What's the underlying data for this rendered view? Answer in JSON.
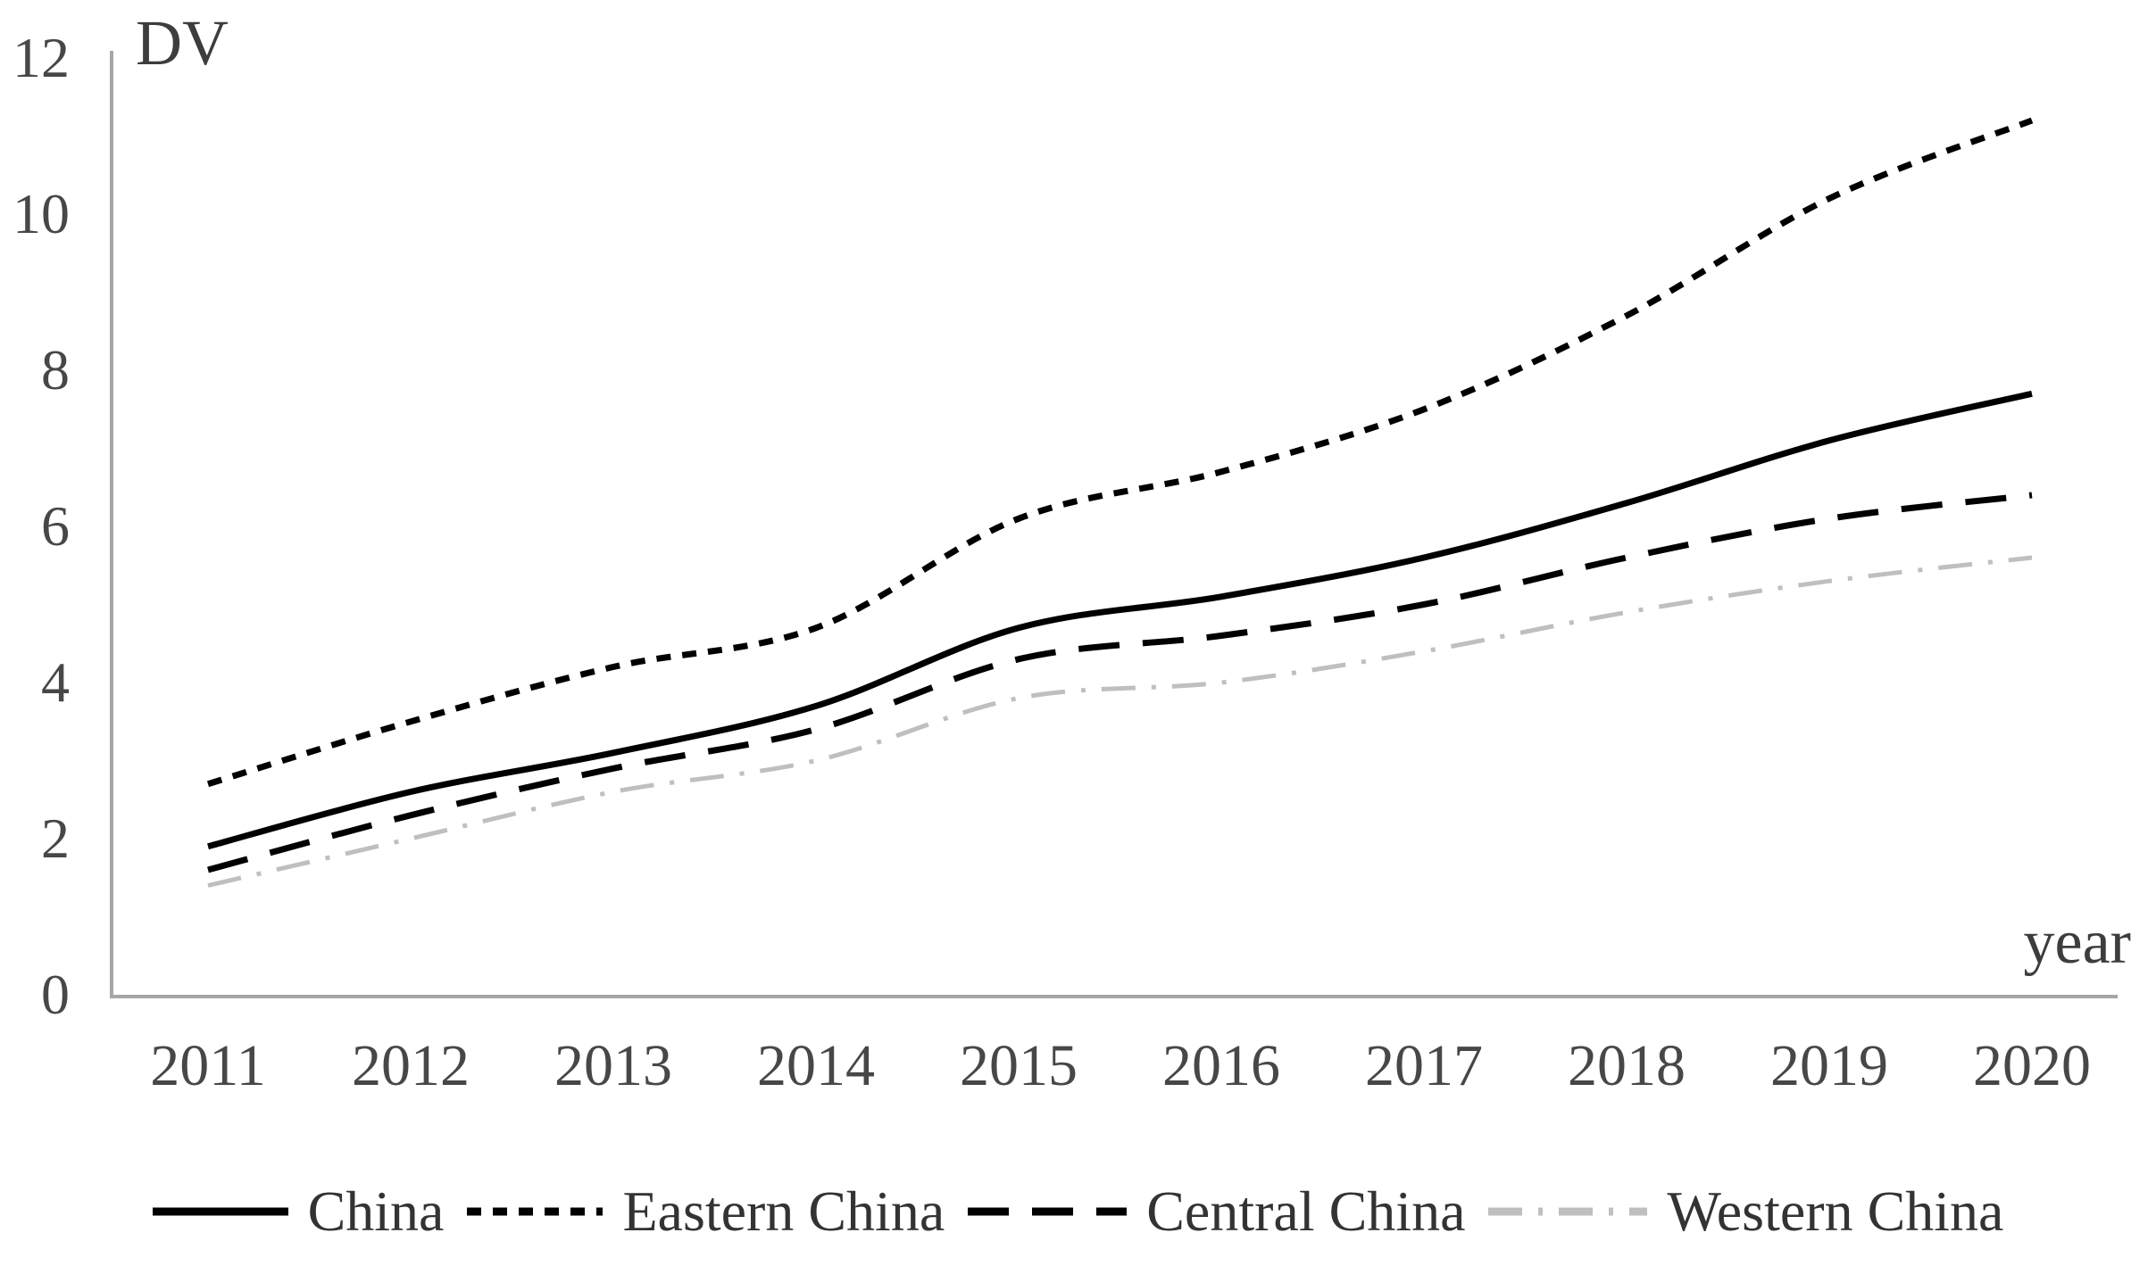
{
  "chart_data": {
    "type": "line",
    "title": "",
    "ylabel": "DV",
    "xlabel": "year",
    "categories": [
      "2011",
      "2012",
      "2013",
      "2014",
      "2015",
      "2016",
      "2017",
      "2018",
      "2019",
      "2020"
    ],
    "series": [
      {
        "name": "China",
        "style": "solid",
        "color": "#000000",
        "values": [
          1.9,
          2.6,
          3.1,
          3.7,
          4.7,
          5.1,
          5.6,
          6.3,
          7.1,
          7.7
        ]
      },
      {
        "name": "Eastern China",
        "style": "dotted",
        "color": "#000000",
        "values": [
          2.7,
          3.5,
          4.2,
          4.7,
          6.1,
          6.7,
          7.5,
          8.7,
          10.2,
          11.2
        ]
      },
      {
        "name": "Central China",
        "style": "dashed",
        "color": "#000000",
        "values": [
          1.6,
          2.3,
          2.9,
          3.4,
          4.3,
          4.6,
          5.0,
          5.6,
          6.1,
          6.4
        ]
      },
      {
        "name": "Western China",
        "style": "dash-dot",
        "color": "#bfbfbf",
        "values": [
          1.4,
          2.0,
          2.6,
          3.0,
          3.8,
          4.0,
          4.4,
          4.9,
          5.3,
          5.6
        ]
      }
    ],
    "ylim": [
      0,
      12
    ],
    "y_ticks": [
      0,
      2,
      4,
      6,
      8,
      10,
      12
    ],
    "grid": false,
    "legend_position": "bottom",
    "axis_color": "#a6a6a6"
  }
}
